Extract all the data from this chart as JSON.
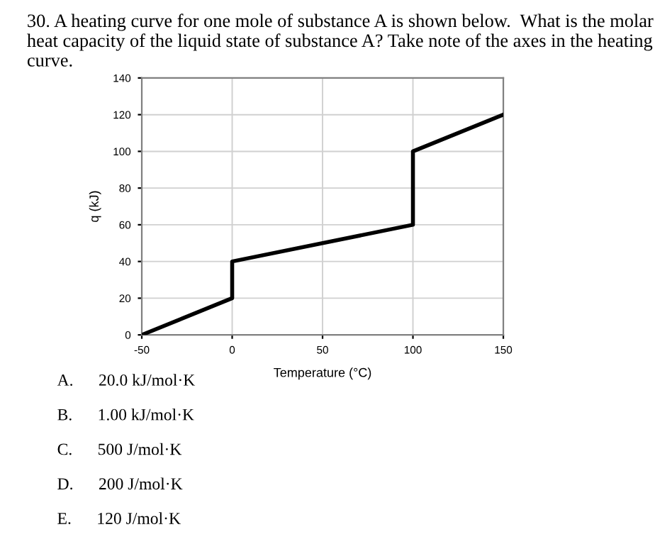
{
  "chart_data": {
    "type": "line",
    "title": "30. A heating curve for one mole of substance A is shown below.  What is the molar heat capacity of the liquid state of substance A? Take note of the axes in the heating curve.",
    "xlabel": "Temperature (°C)",
    "ylabel": "q (kJ)",
    "x": [
      -50,
      0,
      0,
      100,
      100,
      150
    ],
    "series": [
      {
        "color": "#000000",
        "values": [
          0,
          20,
          40,
          60,
          100,
          120
        ]
      }
    ],
    "xlim": [
      -50,
      150
    ],
    "xticks": [
      -50,
      0,
      50,
      100,
      150
    ],
    "ylim": [
      0,
      140
    ],
    "yticks": [
      0,
      20,
      40,
      60,
      80,
      100,
      120,
      140
    ],
    "grid": true,
    "legend": false,
    "marker": "none",
    "line_style": "solid",
    "annotations": [
      "A.      20.0 kJ/mol·K",
      "B.      1.00 kJ/mol·K",
      "C.      500 J/mol·K",
      "D.      200 J/mol·K",
      "E.      120 J/mol·K"
    ]
  }
}
